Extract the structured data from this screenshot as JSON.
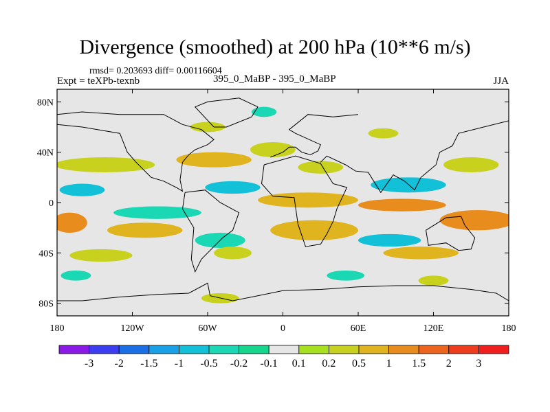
{
  "header": {
    "title": "Divergence (smoothed) at 200 hPa (10**6 m/s)",
    "stats": "rmsd= 0.203693 diff= 0.00116604",
    "experiment": "Expt = teXPb-texnb",
    "cases": "395_0_MaBP - 395_0_MaBP",
    "season": "JJA"
  },
  "chart_data": {
    "type": "heatmap",
    "title": "Divergence (smoothed) at 200 hPa (10**6 m/s)",
    "xlabel": "",
    "ylabel": "",
    "xlim": [
      -180,
      180
    ],
    "ylim": [
      -90,
      90
    ],
    "x_ticks": [
      {
        "value": -180,
        "label": "180"
      },
      {
        "value": -120,
        "label": "120W"
      },
      {
        "value": -60,
        "label": "60W"
      },
      {
        "value": 0,
        "label": "0"
      },
      {
        "value": 60,
        "label": "60E"
      },
      {
        "value": 120,
        "label": "120E"
      },
      {
        "value": 180,
        "label": "180"
      }
    ],
    "y_ticks": [
      {
        "value": 80,
        "label": "80N"
      },
      {
        "value": 40,
        "label": "40N"
      },
      {
        "value": 0,
        "label": "0"
      },
      {
        "value": -40,
        "label": "40S"
      },
      {
        "value": -80,
        "label": "80S"
      }
    ],
    "colorbar": {
      "colors": [
        "#8b1ae6",
        "#3c3cf0",
        "#1a6ee6",
        "#1aa0e6",
        "#12c0d8",
        "#1ad8b4",
        "#14d68c",
        "#e6e6e6",
        "#a6e01e",
        "#c8d21e",
        "#e0b41e",
        "#e88c1e",
        "#ec641e",
        "#f03c1e",
        "#f01e1e"
      ],
      "labels": [
        "-3",
        "-2",
        "-1.5",
        "-1",
        "-0.5",
        "-0.2",
        "-0.1",
        "0.1",
        "0.2",
        "0.5",
        "1",
        "1.5",
        "2",
        "3"
      ]
    },
    "field_blobs": [
      {
        "lon": -142,
        "lat": 30,
        "rx": 40,
        "ry": 6,
        "level": "0.2"
      },
      {
        "lon": -55,
        "lat": 34,
        "rx": 30,
        "ry": 6,
        "level": "0.5"
      },
      {
        "lon": -8,
        "lat": 42,
        "rx": 18,
        "ry": 6,
        "level": "0.2"
      },
      {
        "lon": 30,
        "lat": 28,
        "rx": 18,
        "ry": 5,
        "level": "0.2"
      },
      {
        "lon": 150,
        "lat": 30,
        "rx": 22,
        "ry": 6,
        "level": "0.2"
      },
      {
        "lon": -160,
        "lat": 10,
        "rx": 18,
        "ry": 5,
        "level": "-0.5"
      },
      {
        "lon": -40,
        "lat": 12,
        "rx": 22,
        "ry": 5,
        "level": "-0.5"
      },
      {
        "lon": 100,
        "lat": 14,
        "rx": 30,
        "ry": 6,
        "level": "-0.5"
      },
      {
        "lon": 20,
        "lat": 2,
        "rx": 40,
        "ry": 6,
        "level": "0.5"
      },
      {
        "lon": 95,
        "lat": -2,
        "rx": 35,
        "ry": 5,
        "level": "1"
      },
      {
        "lon": -170,
        "lat": -16,
        "rx": 14,
        "ry": 8,
        "level": "1"
      },
      {
        "lon": 155,
        "lat": -14,
        "rx": 30,
        "ry": 8,
        "level": "1"
      },
      {
        "lon": -110,
        "lat": -22,
        "rx": 30,
        "ry": 6,
        "level": "0.5"
      },
      {
        "lon": 25,
        "lat": -22,
        "rx": 35,
        "ry": 8,
        "level": "0.5"
      },
      {
        "lon": -100,
        "lat": -8,
        "rx": 35,
        "ry": 5,
        "level": "-0.2"
      },
      {
        "lon": -50,
        "lat": -30,
        "rx": 20,
        "ry": 6,
        "level": "-0.2"
      },
      {
        "lon": 85,
        "lat": -30,
        "rx": 25,
        "ry": 5,
        "level": "-0.5"
      },
      {
        "lon": -145,
        "lat": -42,
        "rx": 25,
        "ry": 5,
        "level": "0.2"
      },
      {
        "lon": 110,
        "lat": -40,
        "rx": 30,
        "ry": 5,
        "level": "0.5"
      },
      {
        "lon": -40,
        "lat": -40,
        "rx": 15,
        "ry": 5,
        "level": "0.2"
      },
      {
        "lon": -165,
        "lat": -58,
        "rx": 12,
        "ry": 4,
        "level": "-0.2"
      },
      {
        "lon": 50,
        "lat": -58,
        "rx": 15,
        "ry": 4,
        "level": "-0.2"
      },
      {
        "lon": -50,
        "lat": -76,
        "rx": 15,
        "ry": 4,
        "level": "0.2"
      },
      {
        "lon": 120,
        "lat": -62,
        "rx": 12,
        "ry": 4,
        "level": "0.2"
      },
      {
        "lon": -60,
        "lat": 60,
        "rx": 14,
        "ry": 4,
        "level": "0.2"
      },
      {
        "lon": -15,
        "lat": 72,
        "rx": 10,
        "ry": 4,
        "level": "-0.2"
      },
      {
        "lon": 80,
        "lat": 55,
        "rx": 12,
        "ry": 4,
        "level": "0.2"
      }
    ],
    "coastlines": [
      {
        "name": "africa",
        "points": [
          [
            -15,
            30
          ],
          [
            10,
            37
          ],
          [
            30,
            31
          ],
          [
            40,
            15
          ],
          [
            51,
            12
          ],
          [
            43,
            -5
          ],
          [
            40,
            -15
          ],
          [
            35,
            -25
          ],
          [
            30,
            -33
          ],
          [
            18,
            -35
          ],
          [
            12,
            -17
          ],
          [
            9,
            4
          ],
          [
            -8,
            5
          ],
          [
            -17,
            15
          ],
          [
            -15,
            30
          ]
        ]
      },
      {
        "name": "south-america",
        "points": [
          [
            -78,
            8
          ],
          [
            -62,
            10
          ],
          [
            -50,
            0
          ],
          [
            -35,
            -8
          ],
          [
            -40,
            -22
          ],
          [
            -48,
            -28
          ],
          [
            -58,
            -38
          ],
          [
            -65,
            -45
          ],
          [
            -70,
            -55
          ],
          [
            -73,
            -45
          ],
          [
            -71,
            -20
          ],
          [
            -80,
            -5
          ],
          [
            -78,
            8
          ]
        ]
      },
      {
        "name": "australia",
        "points": [
          [
            114,
            -22
          ],
          [
            130,
            -12
          ],
          [
            142,
            -11
          ],
          [
            145,
            -18
          ],
          [
            153,
            -28
          ],
          [
            150,
            -37
          ],
          [
            140,
            -38
          ],
          [
            130,
            -32
          ],
          [
            116,
            -34
          ],
          [
            114,
            -22
          ]
        ]
      },
      {
        "name": "asia",
        "points": [
          [
            30,
            32
          ],
          [
            35,
            37
          ],
          [
            50,
            30
          ],
          [
            58,
            25
          ],
          [
            68,
            24
          ],
          [
            78,
            8
          ],
          [
            88,
            22
          ],
          [
            97,
            17
          ],
          [
            105,
            10
          ],
          [
            110,
            20
          ],
          [
            122,
            30
          ],
          [
            125,
            40
          ],
          [
            135,
            45
          ],
          [
            140,
            55
          ],
          [
            160,
            60
          ],
          [
            180,
            65
          ]
        ]
      },
      {
        "name": "north-america",
        "points": [
          [
            -180,
            62
          ],
          [
            -160,
            60
          ],
          [
            -130,
            55
          ],
          [
            -124,
            40
          ],
          [
            -117,
            32
          ],
          [
            -105,
            20
          ],
          [
            -95,
            17
          ],
          [
            -85,
            12
          ],
          [
            -80,
            9
          ],
          [
            -82,
            18
          ],
          [
            -81,
            25
          ],
          [
            -80,
            32
          ],
          [
            -75,
            38
          ],
          [
            -70,
            42
          ],
          [
            -60,
            46
          ],
          [
            -55,
            50
          ],
          [
            -65,
            58
          ],
          [
            -80,
            62
          ],
          [
            -95,
            70
          ],
          [
            -130,
            70
          ],
          [
            -160,
            72
          ],
          [
            -180,
            70
          ]
        ]
      },
      {
        "name": "europe",
        "points": [
          [
            -10,
            36
          ],
          [
            0,
            40
          ],
          [
            5,
            44
          ],
          [
            10,
            44
          ],
          [
            15,
            40
          ],
          [
            22,
            38
          ],
          [
            28,
            41
          ],
          [
            30,
            46
          ],
          [
            10,
            55
          ],
          [
            5,
            58
          ],
          [
            10,
            62
          ],
          [
            20,
            70
          ],
          [
            40,
            68
          ],
          [
            60,
            70
          ]
        ]
      },
      {
        "name": "antarctica",
        "points": [
          [
            -180,
            -78
          ],
          [
            -160,
            -78
          ],
          [
            -130,
            -75
          ],
          [
            -100,
            -73
          ],
          [
            -75,
            -72
          ],
          [
            -60,
            -64
          ],
          [
            -58,
            -74
          ],
          [
            -40,
            -78
          ],
          [
            -20,
            -74
          ],
          [
            0,
            -70
          ],
          [
            30,
            -69
          ],
          [
            60,
            -67
          ],
          [
            90,
            -66
          ],
          [
            120,
            -66
          ],
          [
            150,
            -69
          ],
          [
            170,
            -72
          ],
          [
            180,
            -78
          ]
        ]
      },
      {
        "name": "greenland",
        "points": [
          [
            -55,
            60
          ],
          [
            -45,
            60
          ],
          [
            -25,
            68
          ],
          [
            -20,
            76
          ],
          [
            -35,
            83
          ],
          [
            -60,
            80
          ],
          [
            -70,
            76
          ],
          [
            -55,
            60
          ]
        ]
      }
    ]
  }
}
